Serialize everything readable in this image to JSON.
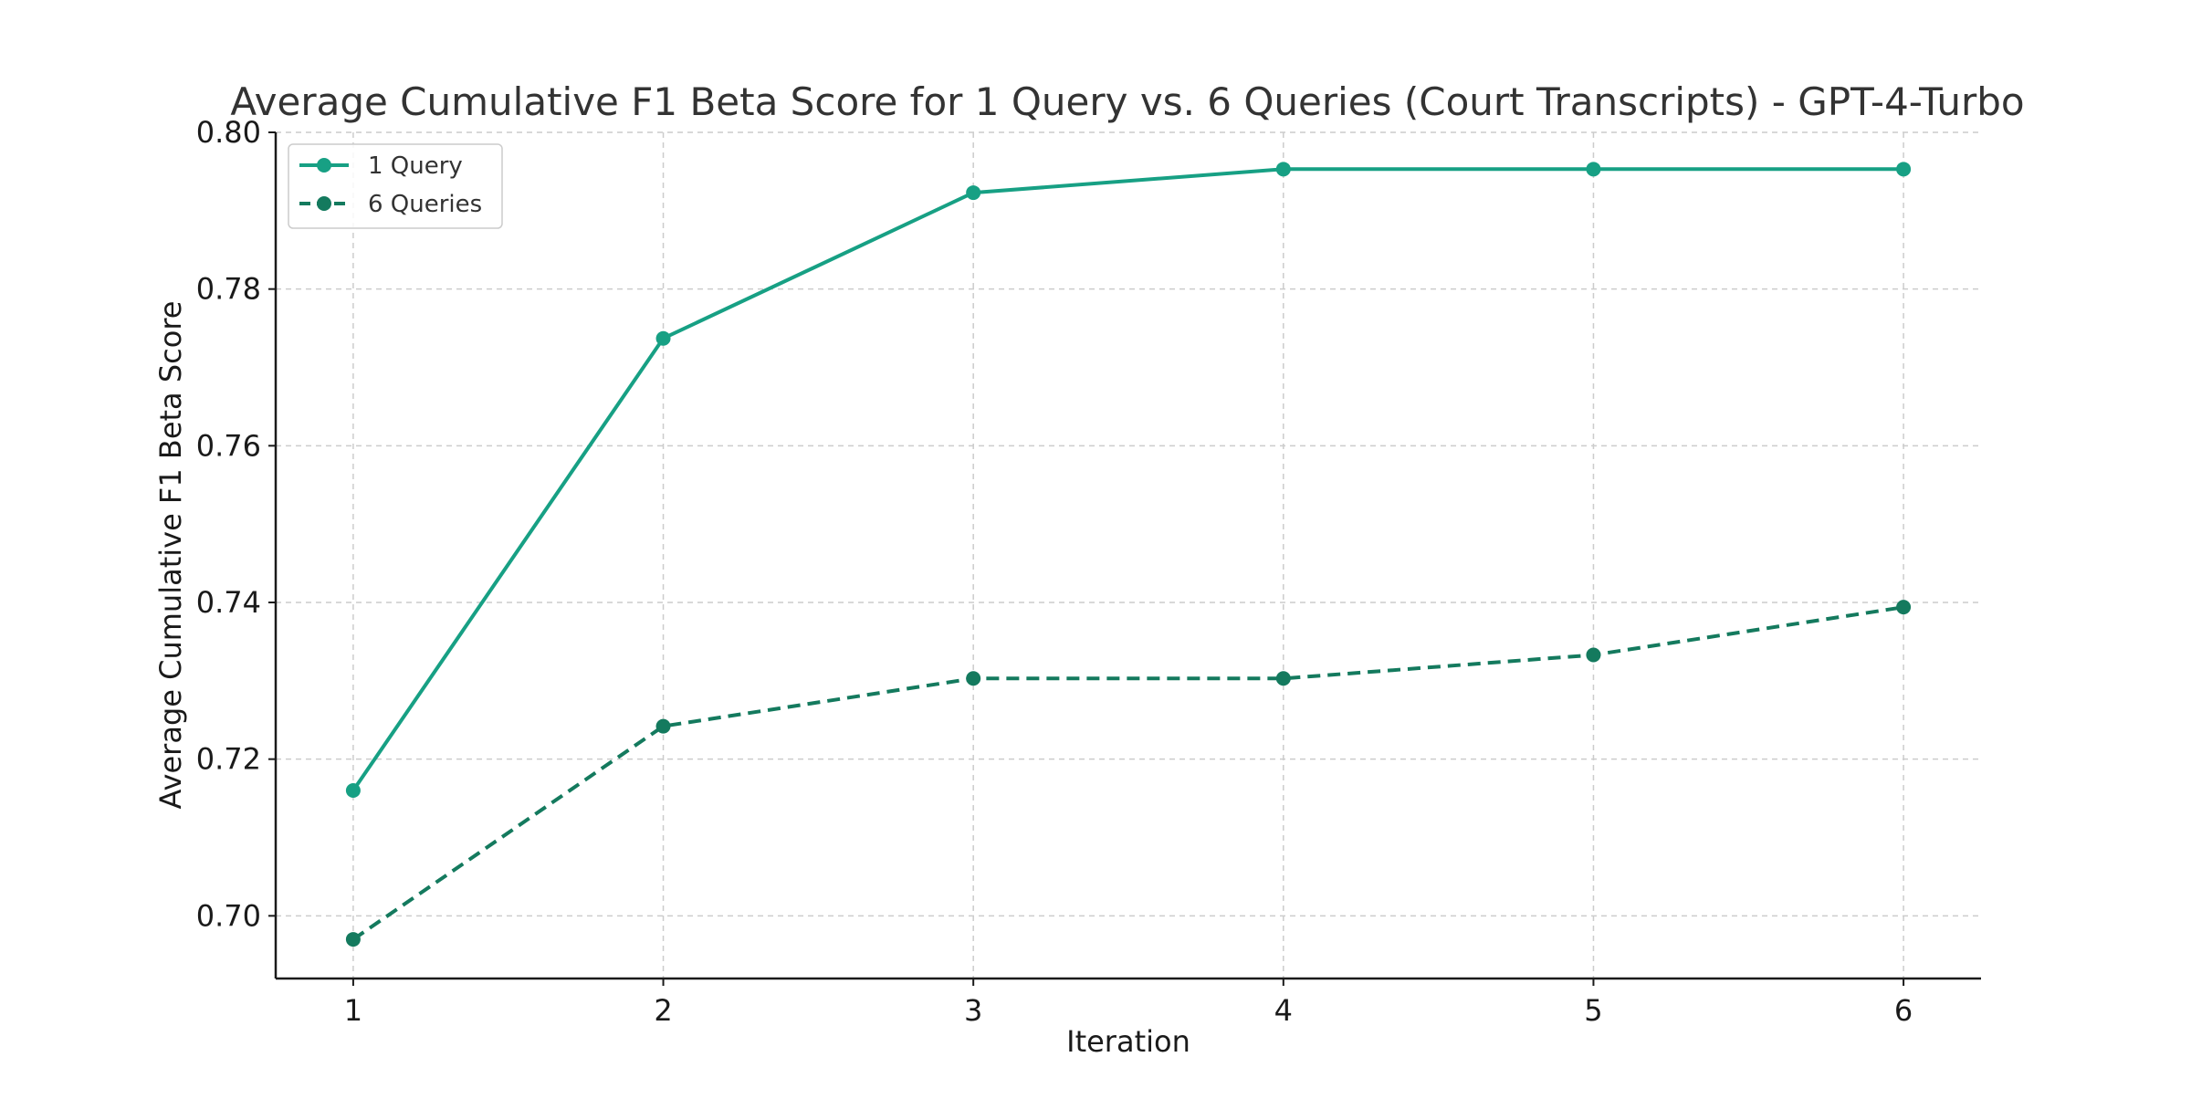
{
  "chart_data": {
    "type": "line",
    "title": "Average Cumulative F1 Beta Score for 1 Query vs. 6 Queries (Court Transcripts) - GPT-4-Turbo",
    "xlabel": "Iteration",
    "ylabel": "Average Cumulative F1 Beta Score",
    "x": [
      1,
      2,
      3,
      4,
      5,
      6
    ],
    "x_tick_labels": [
      "1",
      "2",
      "3",
      "4",
      "5",
      "6"
    ],
    "xlim": [
      0.75,
      6.25
    ],
    "ylim": [
      0.692,
      0.8
    ],
    "y_ticks": [
      0.7,
      0.72,
      0.74,
      0.76,
      0.78,
      0.8
    ],
    "y_tick_labels": [
      "0.70",
      "0.72",
      "0.74",
      "0.76",
      "0.78",
      "0.80"
    ],
    "grid": true,
    "legend_position": "top-left",
    "series": [
      {
        "name": "1 Query",
        "values": [
          0.716,
          0.7737,
          0.7923,
          0.7953,
          0.7953,
          0.7953
        ],
        "color": "#17a084",
        "line_style": "solid",
        "marker": "circle"
      },
      {
        "name": "6 Queries",
        "values": [
          0.697,
          0.7242,
          0.7303,
          0.7303,
          0.7333,
          0.7394
        ],
        "color": "#147a5e",
        "line_style": "dashed",
        "marker": "circle"
      }
    ]
  }
}
